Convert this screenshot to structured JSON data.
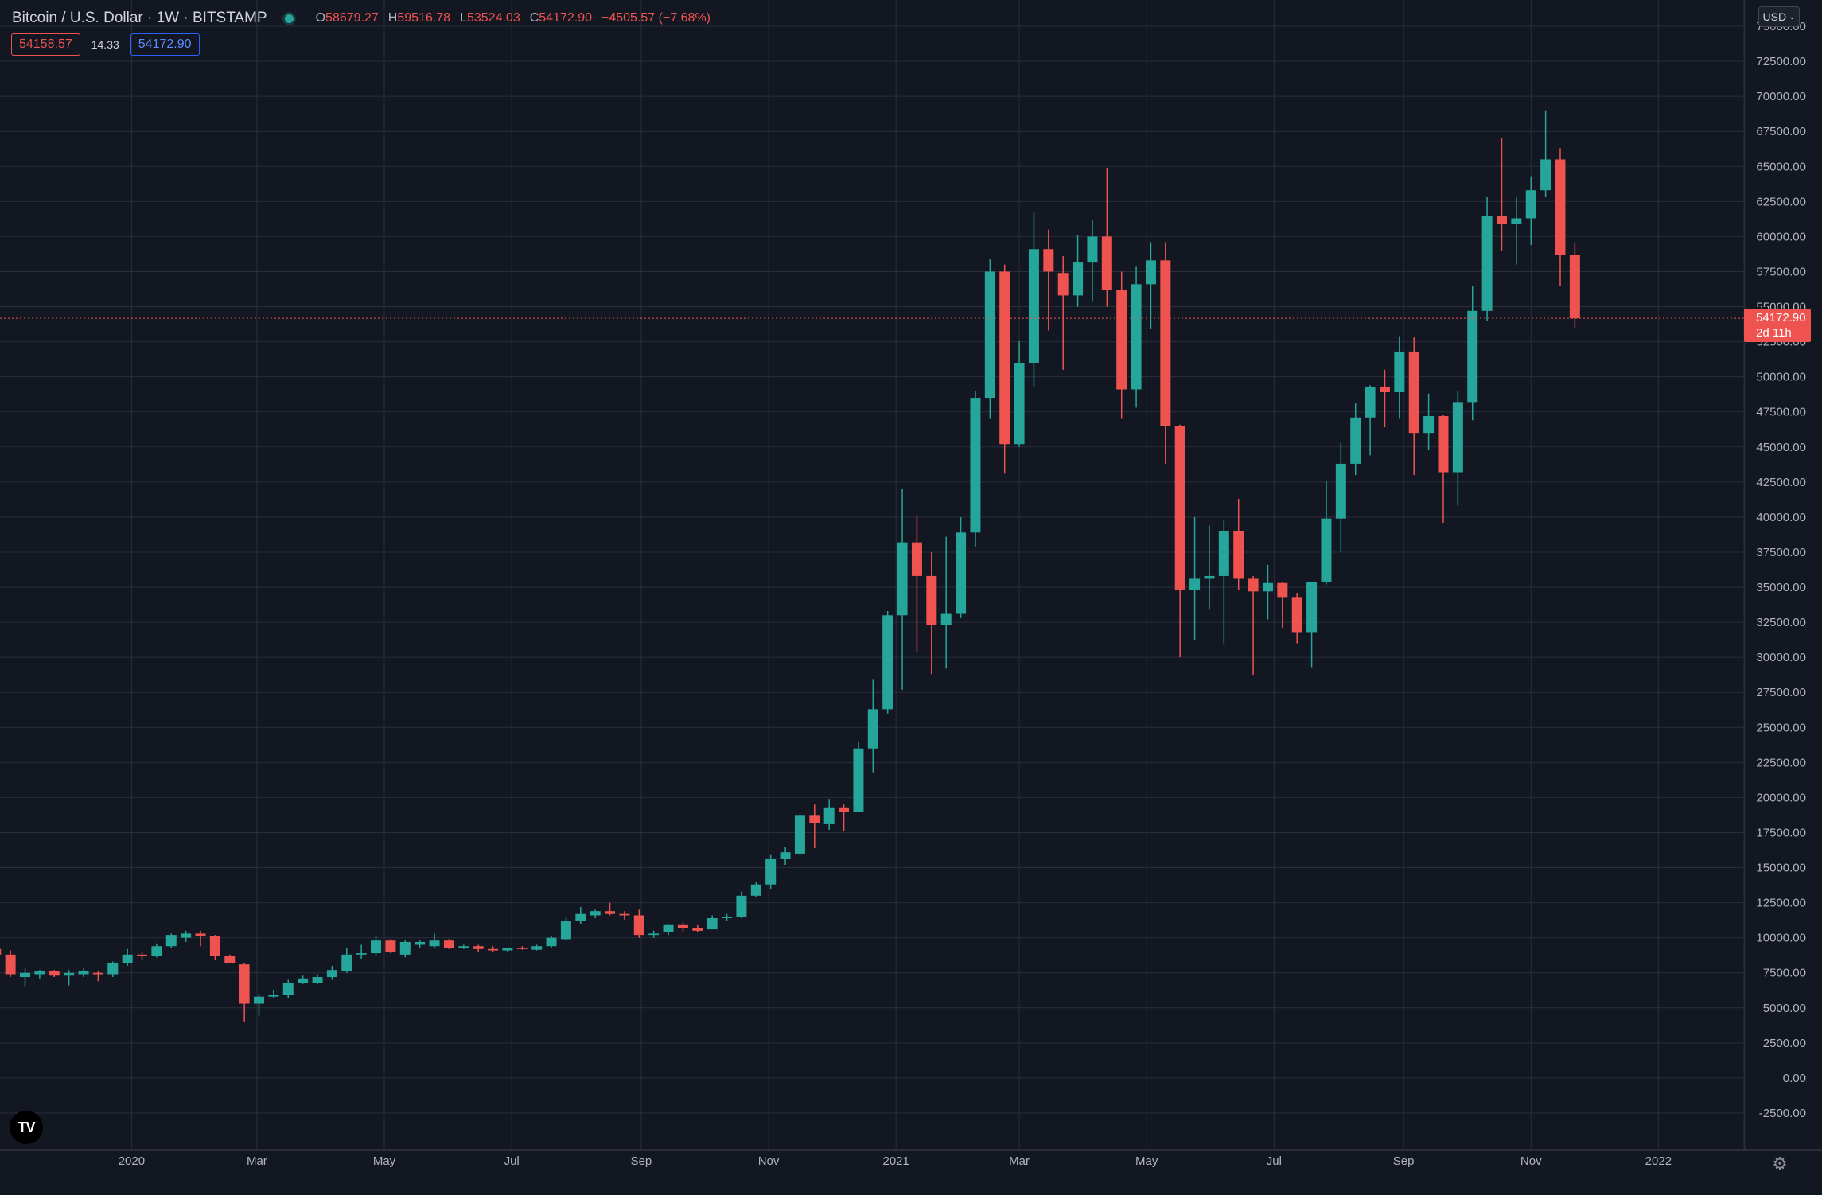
{
  "header": {
    "symbol": "Bitcoin / U.S. Dollar · 1W · BITSTAMP",
    "ohlc": [
      {
        "label": "O",
        "value": "58679.27"
      },
      {
        "label": "H",
        "value": "59516.78"
      },
      {
        "label": "L",
        "value": "53524.03"
      },
      {
        "label": "C",
        "value": "54172.90"
      }
    ],
    "change": "−4505.57 (−7.68%)",
    "bid": "54158.57",
    "spread": "14.33",
    "ask": "54172.90"
  },
  "currency_button": "USD",
  "last_price": {
    "value": "54172.90",
    "countdown": "2d 11h"
  },
  "icons": {
    "logo": "tradingview-logo-icon",
    "settings": "gear-icon",
    "status": "market-status-dot-icon"
  },
  "colors": {
    "background": "#131722",
    "up": "#26a69a",
    "down": "#ef5350",
    "grid": "#2a2e39",
    "text": "#d1d4dc"
  },
  "chart_data": {
    "type": "candlestick",
    "title": "Bitcoin / U.S. Dollar · 1W · BITSTAMP",
    "xlabel": "",
    "ylabel": "",
    "ylim": [
      -2500,
      75000
    ],
    "y_ticks": [
      "-2500.00",
      "0.00",
      "2500.00",
      "5000.00",
      "7500.00",
      "10000.00",
      "12500.00",
      "15000.00",
      "17500.00",
      "20000.00",
      "22500.00",
      "25000.00",
      "27500.00",
      "30000.00",
      "32500.00",
      "35000.00",
      "37500.00",
      "40000.00",
      "42500.00",
      "45000.00",
      "47500.00",
      "50000.00",
      "52500.00",
      "55000.00",
      "57500.00",
      "60000.00",
      "62500.00",
      "65000.00",
      "67500.00",
      "70000.00",
      "72500.00",
      "75000.00"
    ],
    "x_ticks": [
      {
        "label": "2020",
        "date": "2020-01-01"
      },
      {
        "label": "Mar",
        "date": "2020-03-01"
      },
      {
        "label": "May",
        "date": "2020-05-01"
      },
      {
        "label": "Jul",
        "date": "2020-07-01"
      },
      {
        "label": "Sep",
        "date": "2020-09-01"
      },
      {
        "label": "Nov",
        "date": "2020-11-01"
      },
      {
        "label": "2021",
        "date": "2021-01-01"
      },
      {
        "label": "Mar",
        "date": "2021-03-01"
      },
      {
        "label": "May",
        "date": "2021-05-01"
      },
      {
        "label": "Jul",
        "date": "2021-07-01"
      },
      {
        "label": "Sep",
        "date": "2021-09-01"
      },
      {
        "label": "Nov",
        "date": "2021-11-01"
      },
      {
        "label": "2022",
        "date": "2022-01-01"
      }
    ],
    "x_range": [
      "2019-10-30",
      "2022-02-11"
    ],
    "grid": true,
    "last_price_line": 54172.9,
    "candles": [
      {
        "t": "2019-10-28",
        "o": 9200,
        "h": 9400,
        "l": 8700,
        "c": 8800
      },
      {
        "t": "2019-11-04",
        "o": 8800,
        "h": 9100,
        "l": 7200,
        "c": 7400
      },
      {
        "t": "2019-11-11",
        "o": 7200,
        "h": 7800,
        "l": 6500,
        "c": 7500
      },
      {
        "t": "2019-11-18",
        "o": 7400,
        "h": 7700,
        "l": 7100,
        "c": 7600
      },
      {
        "t": "2019-11-25",
        "o": 7600,
        "h": 7700,
        "l": 7200,
        "c": 7300
      },
      {
        "t": "2019-12-02",
        "o": 7300,
        "h": 7700,
        "l": 6600,
        "c": 7500
      },
      {
        "t": "2019-12-09",
        "o": 7400,
        "h": 7800,
        "l": 7200,
        "c": 7600
      },
      {
        "t": "2019-12-16",
        "o": 7500,
        "h": 7600,
        "l": 6900,
        "c": 7400
      },
      {
        "t": "2019-12-23",
        "o": 7400,
        "h": 8300,
        "l": 7200,
        "c": 8200
      },
      {
        "t": "2019-12-30",
        "o": 8200,
        "h": 9200,
        "l": 8000,
        "c": 8800
      },
      {
        "t": "2020-01-06",
        "o": 8800,
        "h": 9000,
        "l": 8400,
        "c": 8700
      },
      {
        "t": "2020-01-13",
        "o": 8700,
        "h": 9600,
        "l": 8600,
        "c": 9400
      },
      {
        "t": "2020-01-20",
        "o": 9400,
        "h": 10300,
        "l": 9300,
        "c": 10200
      },
      {
        "t": "2020-01-27",
        "o": 10000,
        "h": 10500,
        "l": 9700,
        "c": 10300
      },
      {
        "t": "2020-02-03",
        "o": 10300,
        "h": 10500,
        "l": 9400,
        "c": 10100
      },
      {
        "t": "2020-02-10",
        "o": 10100,
        "h": 10200,
        "l": 8400,
        "c": 8700
      },
      {
        "t": "2020-02-17",
        "o": 8700,
        "h": 8800,
        "l": 8200,
        "c": 8200
      },
      {
        "t": "2020-02-24",
        "o": 8100,
        "h": 8200,
        "l": 4000,
        "c": 5300
      },
      {
        "t": "2020-03-02",
        "o": 5300,
        "h": 6000,
        "l": 4400,
        "c": 5800
      },
      {
        "t": "2020-03-09",
        "o": 5800,
        "h": 6300,
        "l": 5700,
        "c": 5900
      },
      {
        "t": "2020-03-16",
        "o": 5900,
        "h": 7000,
        "l": 5700,
        "c": 6800
      },
      {
        "t": "2020-03-23",
        "o": 6800,
        "h": 7300,
        "l": 6700,
        "c": 7100
      },
      {
        "t": "2020-03-30",
        "o": 6800,
        "h": 7400,
        "l": 6700,
        "c": 7200
      },
      {
        "t": "2020-04-06",
        "o": 7200,
        "h": 8000,
        "l": 7000,
        "c": 7700
      },
      {
        "t": "2020-04-13",
        "o": 7600,
        "h": 9300,
        "l": 7500,
        "c": 8800
      },
      {
        "t": "2020-04-20",
        "o": 8800,
        "h": 9500,
        "l": 8500,
        "c": 8900
      },
      {
        "t": "2020-04-27",
        "o": 8900,
        "h": 10100,
        "l": 8700,
        "c": 9800
      },
      {
        "t": "2020-05-04",
        "o": 9800,
        "h": 9900,
        "l": 8900,
        "c": 9000
      },
      {
        "t": "2020-05-11",
        "o": 8800,
        "h": 9800,
        "l": 8600,
        "c": 9700
      },
      {
        "t": "2020-05-18",
        "o": 9500,
        "h": 9800,
        "l": 9300,
        "c": 9700
      },
      {
        "t": "2020-05-25",
        "o": 9400,
        "h": 10300,
        "l": 9300,
        "c": 9800
      },
      {
        "t": "2020-06-01",
        "o": 9800,
        "h": 9900,
        "l": 9200,
        "c": 9300
      },
      {
        "t": "2020-06-08",
        "o": 9300,
        "h": 9500,
        "l": 9200,
        "c": 9400
      },
      {
        "t": "2020-06-15",
        "o": 9400,
        "h": 9500,
        "l": 9000,
        "c": 9200
      },
      {
        "t": "2020-06-22",
        "o": 9200,
        "h": 9400,
        "l": 9000,
        "c": 9100
      },
      {
        "t": "2020-06-29",
        "o": 9100,
        "h": 9300,
        "l": 9000,
        "c": 9250
      },
      {
        "t": "2020-07-06",
        "o": 9300,
        "h": 9400,
        "l": 9150,
        "c": 9200
      },
      {
        "t": "2020-07-13",
        "o": 9150,
        "h": 9500,
        "l": 9100,
        "c": 9400
      },
      {
        "t": "2020-07-20",
        "o": 9400,
        "h": 10100,
        "l": 9300,
        "c": 10000
      },
      {
        "t": "2020-07-27",
        "o": 9900,
        "h": 11500,
        "l": 9800,
        "c": 11200
      },
      {
        "t": "2020-08-03",
        "o": 11200,
        "h": 12200,
        "l": 11000,
        "c": 11700
      },
      {
        "t": "2020-08-10",
        "o": 11600,
        "h": 12000,
        "l": 11400,
        "c": 11900
      },
      {
        "t": "2020-08-17",
        "o": 11900,
        "h": 12500,
        "l": 11600,
        "c": 11700
      },
      {
        "t": "2020-08-24",
        "o": 11700,
        "h": 11900,
        "l": 11300,
        "c": 11600
      },
      {
        "t": "2020-08-31",
        "o": 11600,
        "h": 12000,
        "l": 10000,
        "c": 10200
      },
      {
        "t": "2020-09-07",
        "o": 10200,
        "h": 10500,
        "l": 10000,
        "c": 10300
      },
      {
        "t": "2020-09-14",
        "o": 10400,
        "h": 11000,
        "l": 10200,
        "c": 10900
      },
      {
        "t": "2020-09-21",
        "o": 10900,
        "h": 11100,
        "l": 10400,
        "c": 10700
      },
      {
        "t": "2020-09-28",
        "o": 10700,
        "h": 10900,
        "l": 10400,
        "c": 10500
      },
      {
        "t": "2020-10-05",
        "o": 10600,
        "h": 11600,
        "l": 10600,
        "c": 11400
      },
      {
        "t": "2020-10-12",
        "o": 11400,
        "h": 11700,
        "l": 11200,
        "c": 11500
      },
      {
        "t": "2020-10-19",
        "o": 11500,
        "h": 13300,
        "l": 11400,
        "c": 13000
      },
      {
        "t": "2020-10-26",
        "o": 13000,
        "h": 14000,
        "l": 12900,
        "c": 13800
      },
      {
        "t": "2020-11-02",
        "o": 13800,
        "h": 15900,
        "l": 13500,
        "c": 15600
      },
      {
        "t": "2020-11-09",
        "o": 15600,
        "h": 16500,
        "l": 15200,
        "c": 16100
      },
      {
        "t": "2020-11-16",
        "o": 16000,
        "h": 18800,
        "l": 15900,
        "c": 18700
      },
      {
        "t": "2020-11-23",
        "o": 18700,
        "h": 19500,
        "l": 16400,
        "c": 18200
      },
      {
        "t": "2020-11-30",
        "o": 18100,
        "h": 19900,
        "l": 17700,
        "c": 19300
      },
      {
        "t": "2020-12-07",
        "o": 19300,
        "h": 19500,
        "l": 17600,
        "c": 19000
      },
      {
        "t": "2020-12-14",
        "o": 19000,
        "h": 24000,
        "l": 19000,
        "c": 23500
      },
      {
        "t": "2020-12-21",
        "o": 23500,
        "h": 28400,
        "l": 21800,
        "c": 26300
      },
      {
        "t": "2020-12-28",
        "o": 26300,
        "h": 33300,
        "l": 26000,
        "c": 33000
      },
      {
        "t": "2021-01-04",
        "o": 33000,
        "h": 42000,
        "l": 27700,
        "c": 38200
      },
      {
        "t": "2021-01-11",
        "o": 38200,
        "h": 40100,
        "l": 30400,
        "c": 35800
      },
      {
        "t": "2021-01-18",
        "o": 35800,
        "h": 37500,
        "l": 28800,
        "c": 32300
      },
      {
        "t": "2021-01-25",
        "o": 32300,
        "h": 38600,
        "l": 29200,
        "c": 33100
      },
      {
        "t": "2021-02-01",
        "o": 33100,
        "h": 40000,
        "l": 32800,
        "c": 38900
      },
      {
        "t": "2021-02-08",
        "o": 38900,
        "h": 49000,
        "l": 37900,
        "c": 48500
      },
      {
        "t": "2021-02-15",
        "o": 48500,
        "h": 58400,
        "l": 47000,
        "c": 57500
      },
      {
        "t": "2021-02-22",
        "o": 57500,
        "h": 58000,
        "l": 43100,
        "c": 45200
      },
      {
        "t": "2021-03-01",
        "o": 45200,
        "h": 52600,
        "l": 45000,
        "c": 51000
      },
      {
        "t": "2021-03-08",
        "o": 51000,
        "h": 61700,
        "l": 49300,
        "c": 59100
      },
      {
        "t": "2021-03-15",
        "o": 59100,
        "h": 60500,
        "l": 53300,
        "c": 57500
      },
      {
        "t": "2021-03-22",
        "o": 57400,
        "h": 58600,
        "l": 50500,
        "c": 55800
      },
      {
        "t": "2021-03-29",
        "o": 55800,
        "h": 60100,
        "l": 55000,
        "c": 58200
      },
      {
        "t": "2021-04-05",
        "o": 58200,
        "h": 61200,
        "l": 55400,
        "c": 60000
      },
      {
        "t": "2021-04-12",
        "o": 60000,
        "h": 64900,
        "l": 55000,
        "c": 56200
      },
      {
        "t": "2021-04-19",
        "o": 56200,
        "h": 57500,
        "l": 47000,
        "c": 49100
      },
      {
        "t": "2021-04-26",
        "o": 49100,
        "h": 57900,
        "l": 47800,
        "c": 56600
      },
      {
        "t": "2021-05-03",
        "o": 56600,
        "h": 59600,
        "l": 53400,
        "c": 58300
      },
      {
        "t": "2021-05-10",
        "o": 58300,
        "h": 59600,
        "l": 43800,
        "c": 46500
      },
      {
        "t": "2021-05-17",
        "o": 46500,
        "h": 46600,
        "l": 30000,
        "c": 34800
      },
      {
        "t": "2021-05-24",
        "o": 34800,
        "h": 40000,
        "l": 31200,
        "c": 35600
      },
      {
        "t": "2021-05-31",
        "o": 35600,
        "h": 39400,
        "l": 33400,
        "c": 35800
      },
      {
        "t": "2021-06-07",
        "o": 35800,
        "h": 39800,
        "l": 31000,
        "c": 39000
      },
      {
        "t": "2021-06-14",
        "o": 39000,
        "h": 41300,
        "l": 34800,
        "c": 35600
      },
      {
        "t": "2021-06-21",
        "o": 35600,
        "h": 35800,
        "l": 28700,
        "c": 34700
      },
      {
        "t": "2021-06-28",
        "o": 34700,
        "h": 36600,
        "l": 32700,
        "c": 35300
      },
      {
        "t": "2021-07-05",
        "o": 35300,
        "h": 35400,
        "l": 32100,
        "c": 34300
      },
      {
        "t": "2021-07-12",
        "o": 34300,
        "h": 34600,
        "l": 31000,
        "c": 31800
      },
      {
        "t": "2021-07-19",
        "o": 31800,
        "h": 35400,
        "l": 29300,
        "c": 35400
      },
      {
        "t": "2021-07-26",
        "o": 35400,
        "h": 42600,
        "l": 35200,
        "c": 39900
      },
      {
        "t": "2021-08-02",
        "o": 39900,
        "h": 45300,
        "l": 37500,
        "c": 43800
      },
      {
        "t": "2021-08-09",
        "o": 43800,
        "h": 48100,
        "l": 43000,
        "c": 47100
      },
      {
        "t": "2021-08-16",
        "o": 47100,
        "h": 49400,
        "l": 44400,
        "c": 49300
      },
      {
        "t": "2021-08-23",
        "o": 49300,
        "h": 50500,
        "l": 46400,
        "c": 48900
      },
      {
        "t": "2021-08-30",
        "o": 48900,
        "h": 52900,
        "l": 47000,
        "c": 51800
      },
      {
        "t": "2021-09-06",
        "o": 51800,
        "h": 52800,
        "l": 43000,
        "c": 46000
      },
      {
        "t": "2021-09-13",
        "o": 46000,
        "h": 48800,
        "l": 44800,
        "c": 47200
      },
      {
        "t": "2021-09-20",
        "o": 47200,
        "h": 47300,
        "l": 39600,
        "c": 43200
      },
      {
        "t": "2021-09-27",
        "o": 43200,
        "h": 49000,
        "l": 40800,
        "c": 48200
      },
      {
        "t": "2021-10-04",
        "o": 48200,
        "h": 56500,
        "l": 46900,
        "c": 54700
      },
      {
        "t": "2021-10-11",
        "o": 54700,
        "h": 62800,
        "l": 54000,
        "c": 61500
      },
      {
        "t": "2021-10-18",
        "o": 61500,
        "h": 67000,
        "l": 59000,
        "c": 60900
      },
      {
        "t": "2021-10-25",
        "o": 60900,
        "h": 62800,
        "l": 58000,
        "c": 61300
      },
      {
        "t": "2021-11-01",
        "o": 61300,
        "h": 64300,
        "l": 59400,
        "c": 63300
      },
      {
        "t": "2021-11-08",
        "o": 63300,
        "h": 69000,
        "l": 62800,
        "c": 65500
      },
      {
        "t": "2021-11-15",
        "o": 65500,
        "h": 66300,
        "l": 56500,
        "c": 58700
      },
      {
        "t": "2021-11-22",
        "o": 58679.27,
        "h": 59516.78,
        "l": 53524.03,
        "c": 54172.9
      }
    ]
  }
}
